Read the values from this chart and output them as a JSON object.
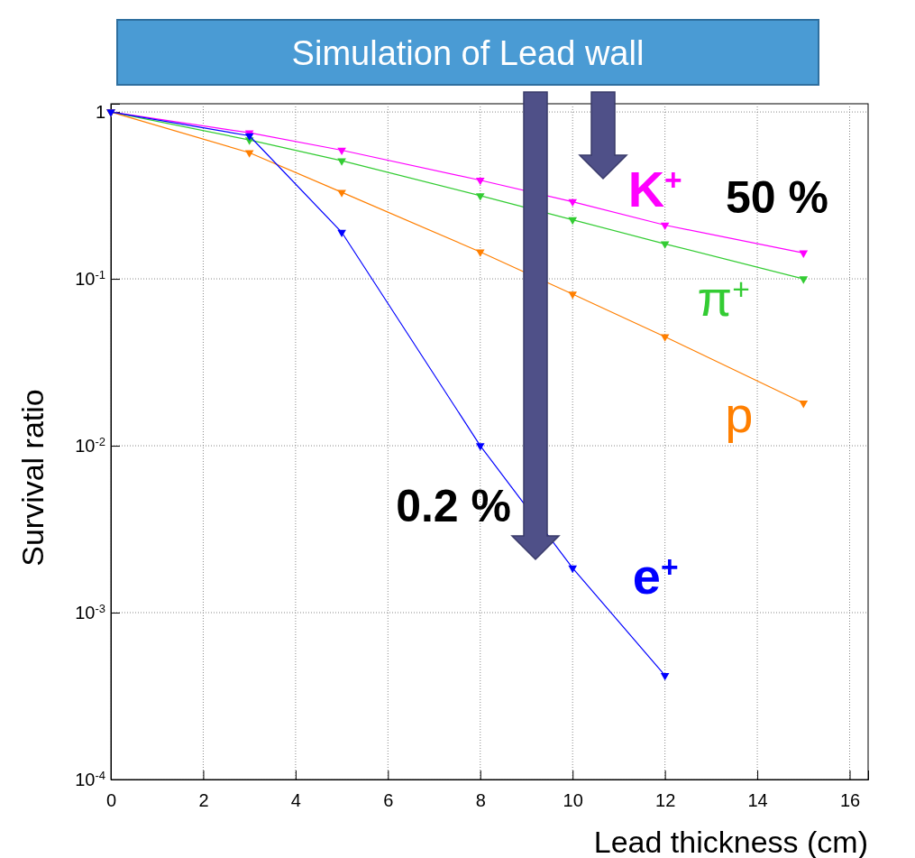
{
  "chart_data": {
    "type": "line",
    "title": "Simulation of Lead wall",
    "xlabel": "Lead thickness (cm)",
    "ylabel": "Survival ratio",
    "x": [
      0,
      3,
      5,
      8,
      10,
      12,
      15
    ],
    "series": [
      {
        "name": "K$^{+}$",
        "color": "#ff00ff",
        "values": [
          1,
          0.75,
          0.59,
          0.39,
          0.29,
          0.21,
          0.143
        ]
      },
      {
        "name": "π$^{+}$",
        "color": "#33cc33",
        "values": [
          1,
          0.68,
          0.51,
          0.315,
          0.226,
          0.162,
          0.1
        ]
      },
      {
        "name": "p",
        "color": "#ff7f00",
        "values": [
          1,
          0.57,
          0.33,
          0.145,
          0.081,
          0.045,
          0.018
        ]
      },
      {
        "name": "e$^{+}$",
        "color": "#0000ff",
        "x": [
          0,
          3,
          5,
          8,
          10,
          12
        ],
        "values": [
          1,
          0.72,
          0.19,
          0.01,
          0.00185,
          0.00042
        ]
      }
    ],
    "xlim": [
      0,
      16.4
    ],
    "xticks": [
      0,
      2,
      4,
      6,
      8,
      10,
      12,
      14,
      16
    ],
    "ylim": [
      0.0001,
      1.12
    ],
    "yticks": [
      1,
      {
        "value": 0.1,
        "label": "10$^{-1}$"
      },
      {
        "value": 0.01,
        "label": "10$^{-2}$"
      },
      {
        "value": 0.001,
        "label": "10$^{-3}$"
      },
      {
        "value": 0.0001,
        "label": "10$^{-4}$"
      }
    ],
    "log": "y",
    "grid": true,
    "marker": "triangle",
    "legend": false,
    "annotations": [
      "50 %",
      "0.2 %"
    ]
  }
}
